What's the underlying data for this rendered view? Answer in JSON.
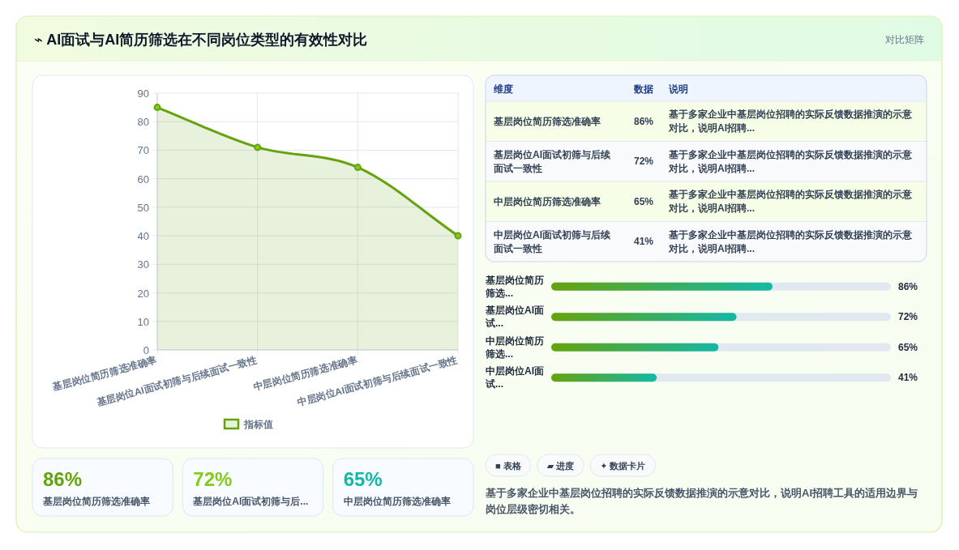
{
  "chart_data": [
    {
      "type": "area",
      "title": "⌁ AI面试与AI简历筛选在不同岗位类型的有效性对比",
      "annotations": [
        "对比矩阵"
      ],
      "categories": [
        "基层岗位简历筛选准确率",
        "基层岗位AI面试初筛与后续面试一致性",
        "中层岗位简历筛选准确率",
        "中层岗位AI面试初筛与后续面试一致性"
      ],
      "series": [
        {
          "name": "指标值",
          "color": "#65a30d",
          "values": [
            85,
            71,
            64,
            40
          ]
        }
      ],
      "ylim": [
        0,
        90
      ],
      "yticks": [
        0,
        10,
        20,
        30,
        40,
        50,
        60,
        70,
        80,
        90
      ],
      "grid": true,
      "legend": "bottom",
      "marker": "circle"
    },
    {
      "type": "other",
      "categories": [
        "基层岗位简历筛选准确率",
        "基层岗位AI面试初筛与后续面试一致性",
        "中层岗位简历筛选准确率",
        "中层岗位AI面试初筛与后续面试一致性"
      ],
      "value_labels": [
        "86%",
        "72%",
        "65%",
        "41%"
      ],
      "annotations": [
        "维度",
        "数据",
        "说明",
        "基于多家企业中基层岗位招聘的实际反馈数据推演的示意对比，说明AI招聘...",
        "基于多家企业中基层岗位招聘的实际反馈数据推演的示意对比，说明AI招聘...",
        "基于多家企业中基层岗位招聘的实际反馈数据推演的示意对比，说明AI招聘...",
        "基于多家企业中基层岗位招聘的实际反馈数据推演的示意对比，说明AI招聘..."
      ]
    },
    {
      "type": "bar",
      "orientation": "horizontal",
      "categories": [
        "基层岗位简历筛选...",
        "基层岗位AI面试...",
        "中层岗位简历筛选...",
        "中层岗位AI面试..."
      ],
      "values": [
        86,
        72,
        65,
        41
      ],
      "value_labels": [
        "86%",
        "72%",
        "65%",
        "41%"
      ],
      "color": "#65a30d",
      "xlim": [
        0,
        132
      ]
    },
    {
      "type": "other",
      "categories": [
        "基层岗位简历筛选准确率",
        "基层岗位AI面试初筛与后...",
        "中层岗位简历筛选准确率"
      ],
      "value_labels": [
        "86%",
        "72%",
        "65%"
      ],
      "colors": [
        "#65a30d",
        "#84cc16",
        "#14b8a6"
      ]
    },
    {
      "type": "other",
      "annotations": [
        "■ 表格",
        "▰ 进度",
        "✦ 数据卡片",
        "基于多家企业中基层岗位招聘的实际反馈数据推演的示意对比，说明AI招聘工具的适用边界与岗位层级密切相关。"
      ]
    }
  ]
}
